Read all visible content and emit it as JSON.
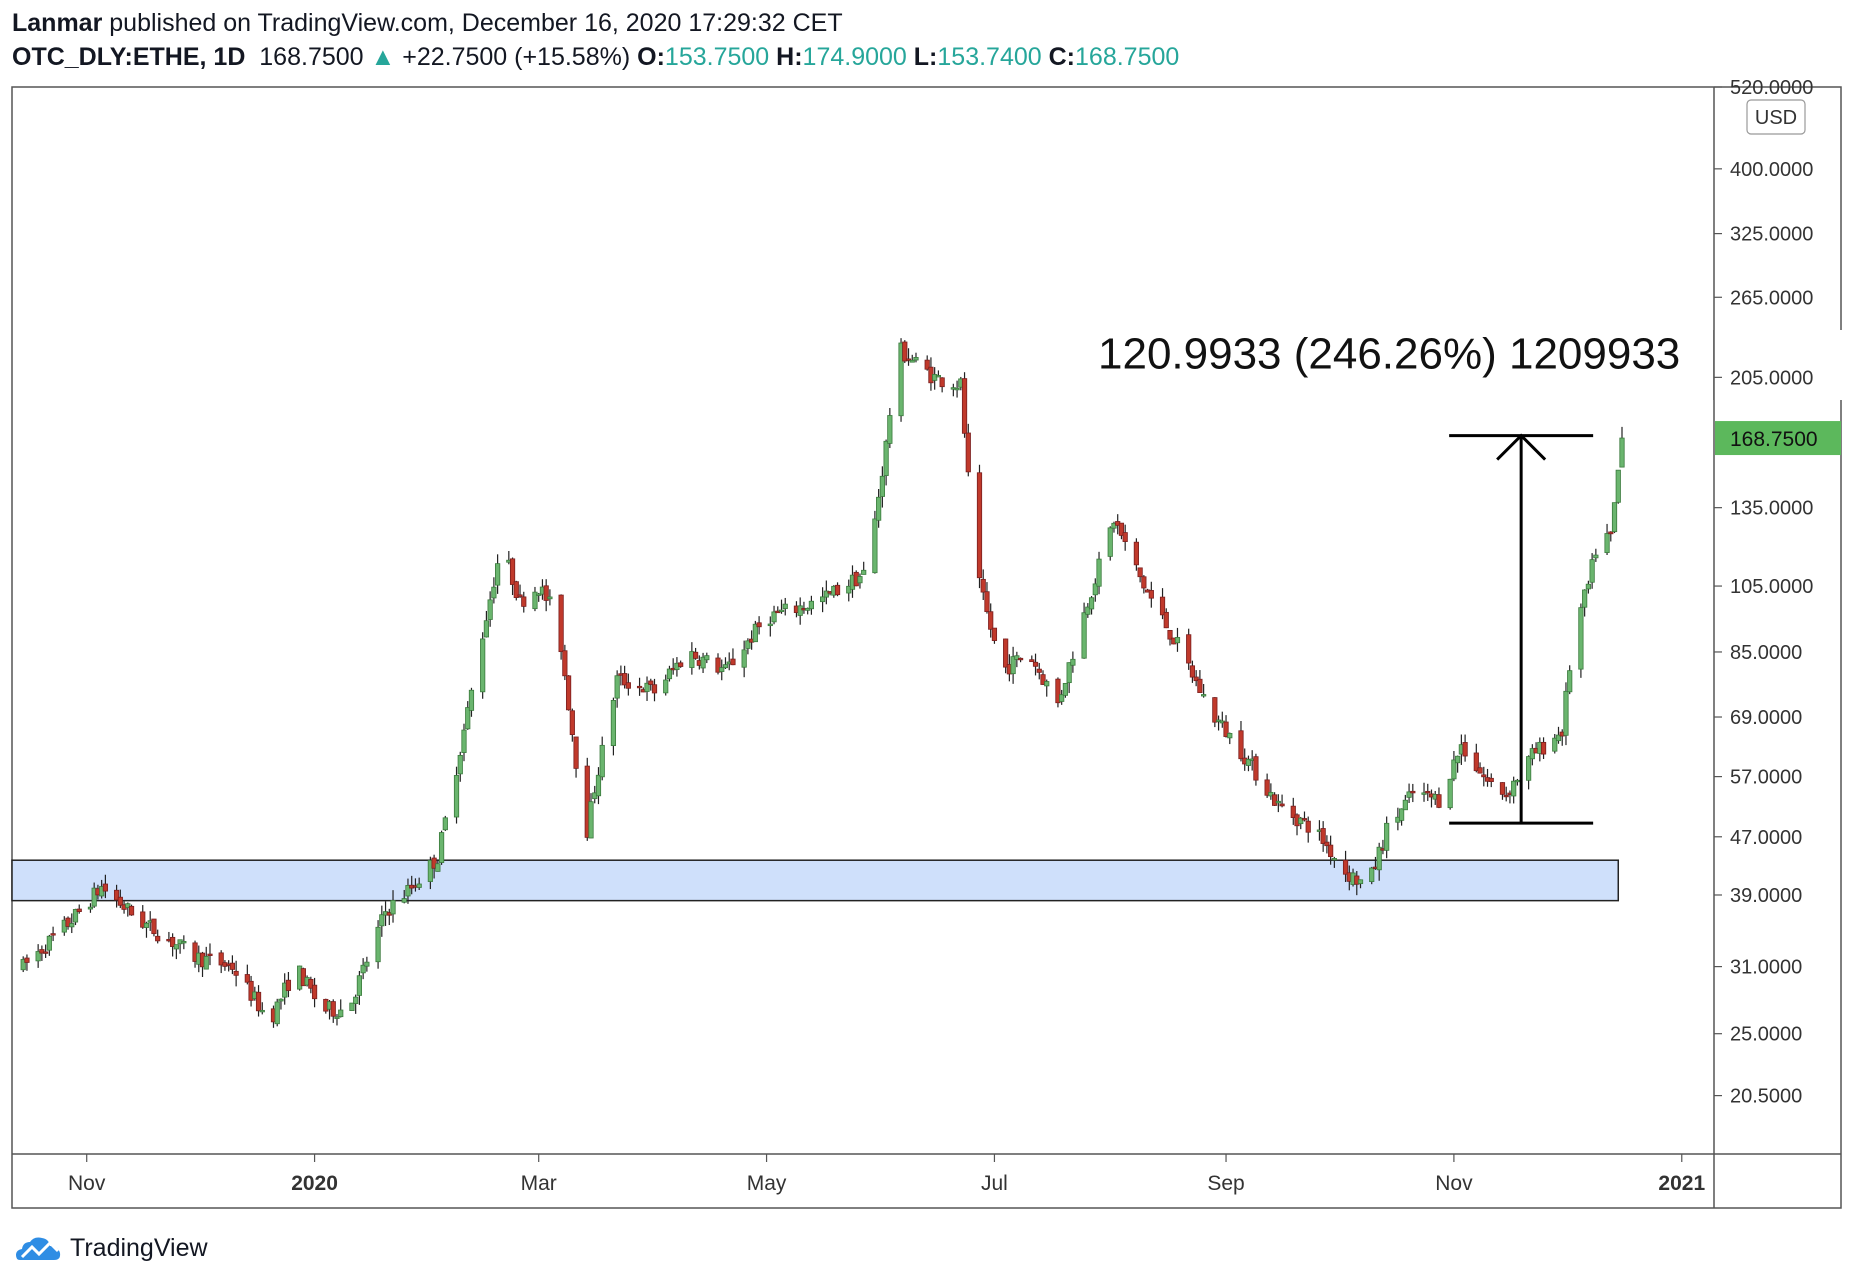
{
  "header": {
    "author": "Lanmar",
    "published_text": "published on TradingView.com, December 16, 2020 17:29:32 CET",
    "symbol": "OTC_DLY:ETHE, 1D",
    "last_price": "168.7500",
    "change_arrow": "▲",
    "change": "+22.7500 (+15.58%)",
    "open_label": "O:",
    "open": "153.7500",
    "high_label": "H:",
    "high": "174.9000",
    "low_label": "L:",
    "low": "153.7400",
    "close_label": "C:",
    "close": "168.7500"
  },
  "footer": {
    "brand": "TradingView",
    "logo_icon": "tradingview-cloud-icon"
  },
  "colors": {
    "up": "#26a69a",
    "up_body": "#6ab56e",
    "down": "#c0392b",
    "zone_fill": "#cfe0fb",
    "price_badge": "#5cb85c"
  },
  "chart_data": {
    "type": "candlestick",
    "scale": "log",
    "currency_label": "USD",
    "ylim": [
      17,
      520
    ],
    "y_ticks": [
      "520.0000",
      "400.0000",
      "325.0000",
      "265.0000",
      "205.0000",
      "135.0000",
      "105.0000",
      "85.0000",
      "69.0000",
      "57.0000",
      "47.0000",
      "39.0000",
      "31.0000",
      "25.0000",
      "20.5000"
    ],
    "x_labels": [
      "Nov",
      "2020",
      "Mar",
      "May",
      "Jul",
      "Sep",
      "Nov",
      "2021"
    ],
    "last_price_label": "168.7500",
    "support_zone": {
      "low": 38.3,
      "high": 43.6,
      "from": "2019-10-15",
      "to": "2020-12-15"
    },
    "measure": {
      "label": "120.9933 (246.26%) 1209933",
      "from_price": 49.1,
      "to_price": 170.1,
      "date": "2020-11-19"
    },
    "anchors": [
      [
        "2019-10-15",
        31
      ],
      [
        "2019-10-28",
        36
      ],
      [
        "2019-11-05",
        40
      ],
      [
        "2019-11-15",
        36
      ],
      [
        "2019-11-30",
        32
      ],
      [
        "2019-12-10",
        31
      ],
      [
        "2019-12-20",
        26
      ],
      [
        "2019-12-27",
        31
      ],
      [
        "2020-01-03",
        27
      ],
      [
        "2020-01-10",
        27
      ],
      [
        "2020-01-20",
        37
      ],
      [
        "2020-01-27",
        40
      ],
      [
        "2020-02-03",
        44
      ],
      [
        "2020-02-10",
        66
      ],
      [
        "2020-02-15",
        90
      ],
      [
        "2020-02-20",
        120
      ],
      [
        "2020-02-25",
        100
      ],
      [
        "2020-03-01",
        105
      ],
      [
        "2020-03-06",
        95
      ],
      [
        "2020-03-11",
        60
      ],
      [
        "2020-03-13",
        45
      ],
      [
        "2020-03-16",
        55
      ],
      [
        "2020-03-22",
        78
      ],
      [
        "2020-04-01",
        75
      ],
      [
        "2020-04-10",
        85
      ],
      [
        "2020-04-20",
        80
      ],
      [
        "2020-05-01",
        95
      ],
      [
        "2020-05-15",
        100
      ],
      [
        "2020-05-28",
        110
      ],
      [
        "2020-06-02",
        165
      ],
      [
        "2020-06-05",
        225
      ],
      [
        "2020-06-15",
        205
      ],
      [
        "2020-06-22",
        200
      ],
      [
        "2020-06-26",
        110
      ],
      [
        "2020-07-03",
        80
      ],
      [
        "2020-07-10",
        85
      ],
      [
        "2020-07-18",
        72
      ],
      [
        "2020-07-26",
        100
      ],
      [
        "2020-08-02",
        130
      ],
      [
        "2020-08-10",
        105
      ],
      [
        "2020-08-20",
        85
      ],
      [
        "2020-08-28",
        70
      ],
      [
        "2020-09-05",
        62
      ],
      [
        "2020-09-15",
        52
      ],
      [
        "2020-09-25",
        48
      ],
      [
        "2020-10-03",
        42
      ],
      [
        "2020-10-09",
        40
      ],
      [
        "2020-10-14",
        48
      ],
      [
        "2020-10-21",
        54
      ],
      [
        "2020-10-28",
        53
      ],
      [
        "2020-11-03",
        63
      ],
      [
        "2020-11-10",
        56
      ],
      [
        "2020-11-15",
        54
      ],
      [
        "2020-11-22",
        61
      ],
      [
        "2020-11-30",
        66
      ],
      [
        "2020-12-03",
        90
      ],
      [
        "2020-12-07",
        105
      ],
      [
        "2020-12-10",
        125
      ],
      [
        "2020-12-13",
        122
      ],
      [
        "2020-12-16",
        168.75
      ]
    ],
    "last_candle": {
      "open": 153.75,
      "high": 174.9,
      "low": 153.74,
      "close": 168.75
    }
  }
}
